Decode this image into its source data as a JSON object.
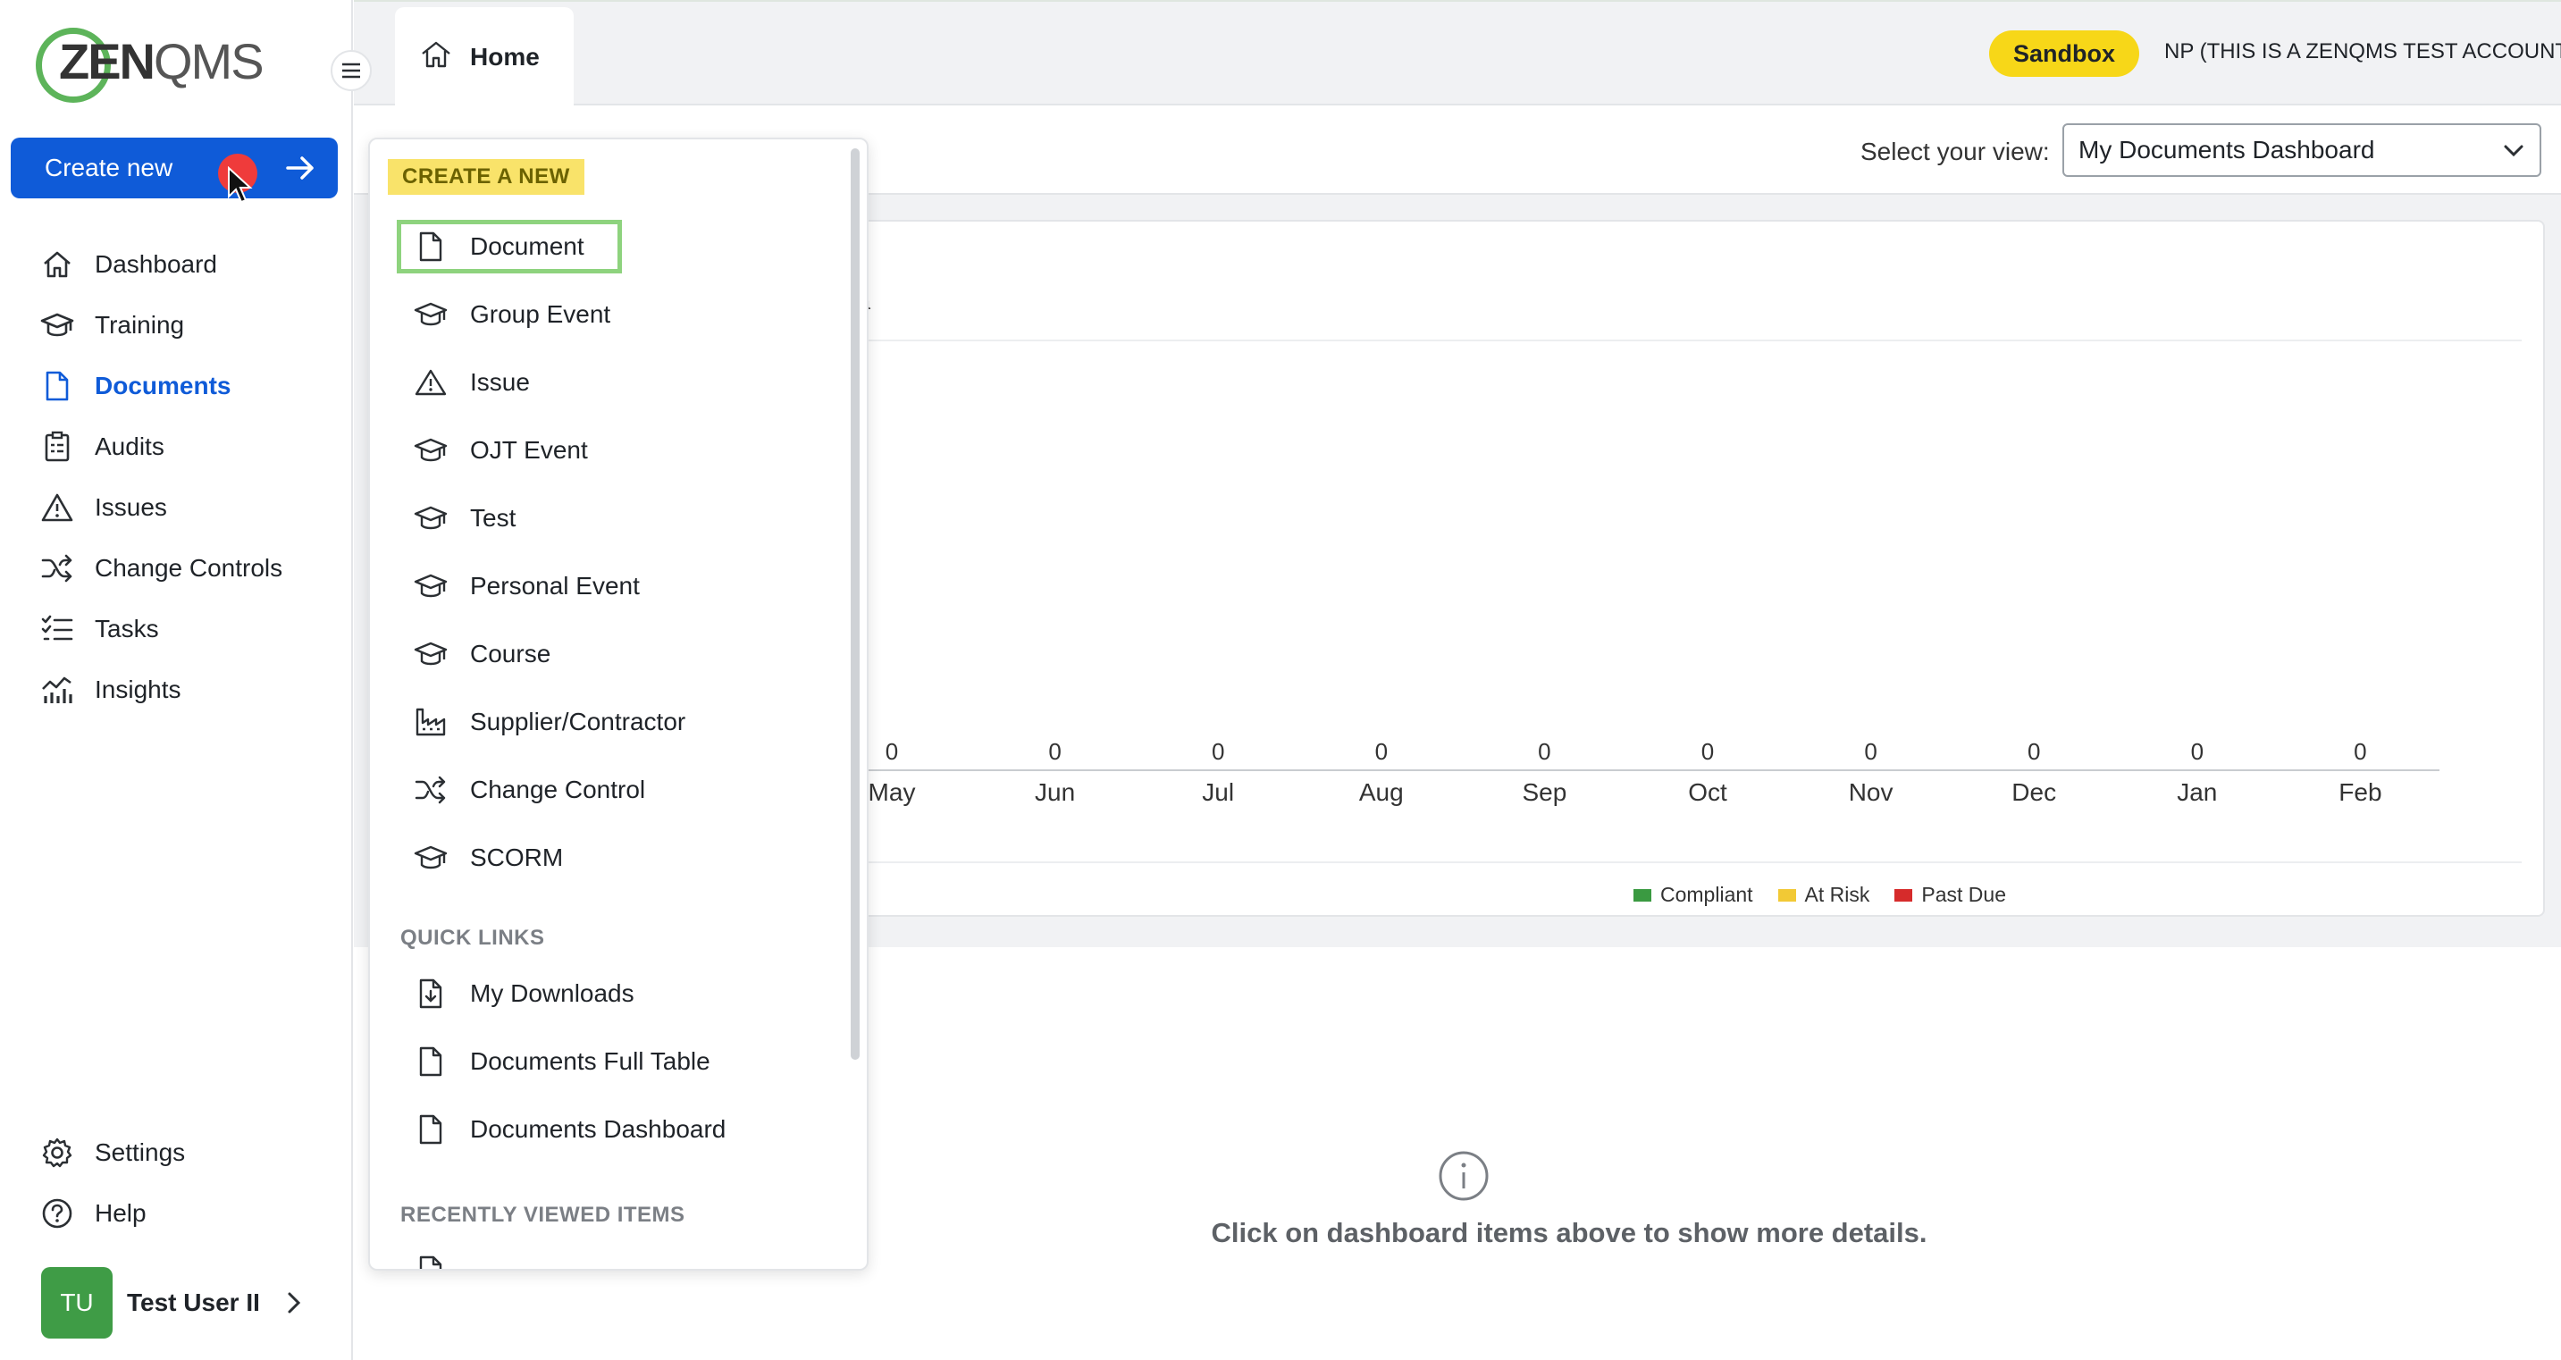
{
  "app": {
    "logo_text_bold": "ZEN",
    "logo_text_light": "QMS",
    "sandbox_badge": "Sandbox",
    "account_name": "NP (THIS IS A ZENQMS TEST ACCOUNT)"
  },
  "sidebar": {
    "create_new_label": "Create new",
    "items": [
      {
        "label": "Dashboard",
        "icon": "home-icon"
      },
      {
        "label": "Training",
        "icon": "graduation-cap-icon"
      },
      {
        "label": "Documents",
        "icon": "document-icon",
        "active": true
      },
      {
        "label": "Audits",
        "icon": "clipboard-icon"
      },
      {
        "label": "Issues",
        "icon": "warning-icon"
      },
      {
        "label": "Change Controls",
        "icon": "shuffle-icon"
      },
      {
        "label": "Tasks",
        "icon": "tasks-icon"
      },
      {
        "label": "Insights",
        "icon": "chart-icon"
      }
    ],
    "bottom_items": [
      {
        "label": "Settings",
        "icon": "gear-icon"
      },
      {
        "label": "Help",
        "icon": "help-icon"
      }
    ],
    "user": {
      "initials": "TU",
      "name": "Test User II"
    }
  },
  "tabs": [
    {
      "label": "Home",
      "icon": "home-icon",
      "active": true
    }
  ],
  "view": {
    "label": "Select your view:",
    "selected": "My Documents Dashboard"
  },
  "card": {
    "title_fragment": "ata"
  },
  "chart_data": {
    "type": "bar",
    "categories": [
      "May",
      "Jun",
      "Jul",
      "Aug",
      "Sep",
      "Oct",
      "Nov",
      "Dec",
      "Jan",
      "Feb"
    ],
    "series": [
      {
        "name": "Compliant",
        "color": "#3a9a41",
        "values": [
          0,
          0,
          0,
          0,
          0,
          0,
          0,
          0,
          0,
          0
        ]
      },
      {
        "name": "At Risk",
        "color": "#f2c935",
        "values": [
          0,
          0,
          0,
          0,
          0,
          0,
          0,
          0,
          0,
          0
        ]
      },
      {
        "name": "Past Due",
        "color": "#d62b2b",
        "values": [
          0,
          0,
          0,
          0,
          0,
          0,
          0,
          0,
          0,
          0
        ]
      }
    ],
    "totals": [
      "0",
      "0",
      "0",
      "0",
      "0",
      "0",
      "0",
      "0",
      "0",
      "0"
    ],
    "legend_position": "bottom"
  },
  "empty_state": {
    "text": "Click on dashboard items above to show more details."
  },
  "dropdown": {
    "create_section": "CREATE A NEW",
    "create_items": [
      {
        "label": "Document",
        "icon": "document-icon",
        "highlighted": true
      },
      {
        "label": "Group Event",
        "icon": "graduation-cap-icon"
      },
      {
        "label": "Issue",
        "icon": "warning-icon"
      },
      {
        "label": "OJT Event",
        "icon": "graduation-cap-icon"
      },
      {
        "label": "Test",
        "icon": "graduation-cap-icon"
      },
      {
        "label": "Personal Event",
        "icon": "graduation-cap-icon"
      },
      {
        "label": "Course",
        "icon": "graduation-cap-icon"
      },
      {
        "label": "Supplier/Contractor",
        "icon": "factory-icon"
      },
      {
        "label": "Change Control",
        "icon": "shuffle-icon"
      },
      {
        "label": "SCORM",
        "icon": "graduation-cap-icon"
      }
    ],
    "quick_links_section": "QUICK LINKS",
    "quick_links": [
      {
        "label": "My Downloads",
        "icon": "download-doc-icon"
      },
      {
        "label": "Documents Full Table",
        "icon": "document-icon"
      },
      {
        "label": "Documents Dashboard",
        "icon": "document-icon"
      }
    ],
    "recent_section": "RECENTLY VIEWED ITEMS"
  }
}
